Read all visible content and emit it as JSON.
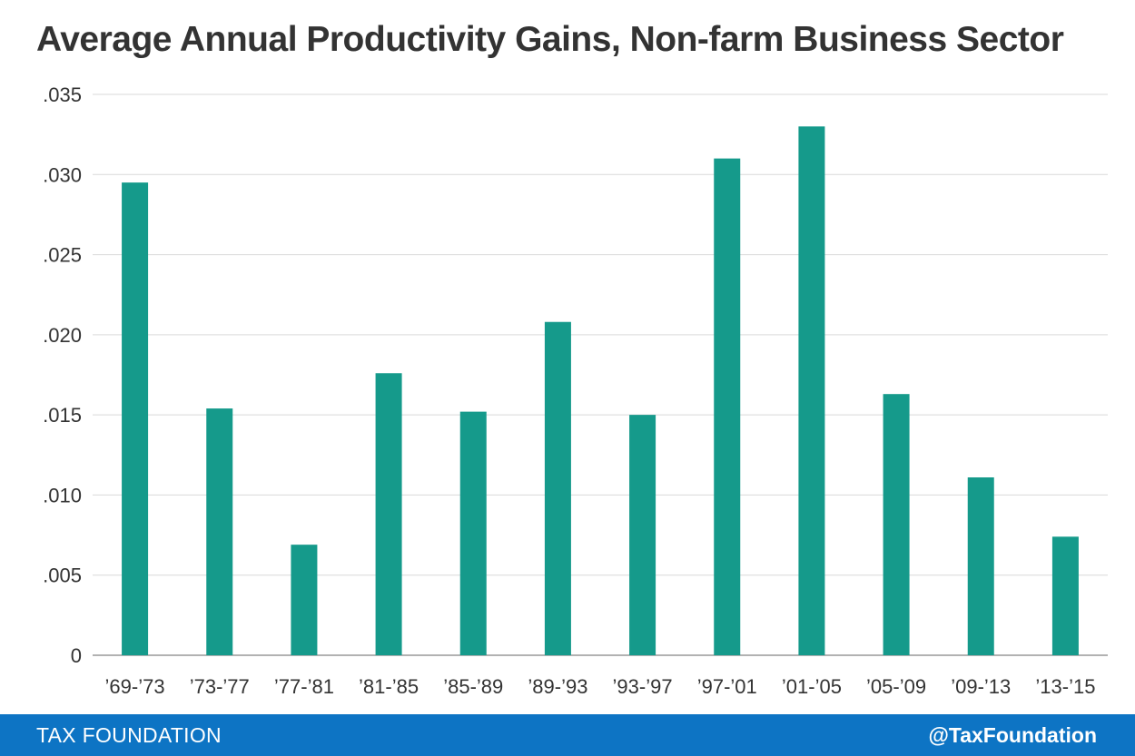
{
  "chart_data": {
    "type": "bar",
    "title": "Average Annual Productivity Gains, Non-farm Business Sector",
    "xlabel": "",
    "ylabel": "",
    "categories": [
      "’69-’73",
      "’73-’77",
      "’77-’81",
      "’81-’85",
      "’85-’89",
      "’89-’93",
      "’93-’97",
      "’97-’01",
      "’01-’05",
      "’05-’09",
      "’09-’13",
      "’13-’15"
    ],
    "values": [
      0.0295,
      0.0154,
      0.0069,
      0.0176,
      0.0152,
      0.0208,
      0.015,
      0.031,
      0.033,
      0.0163,
      0.0111,
      0.0074
    ],
    "ylim": [
      0,
      0.035
    ],
    "yticks": [
      0,
      0.005,
      0.01,
      0.015,
      0.02,
      0.025,
      0.03,
      0.035
    ],
    "ytick_labels": [
      "0",
      ".005",
      ".010",
      ".015",
      ".020",
      ".025",
      ".030",
      ".035"
    ],
    "grid": true,
    "bar_color": "#159a8b"
  },
  "footer": {
    "brand": "TAX FOUNDATION",
    "handle": "@TaxFoundation",
    "background": "#0d74c4"
  }
}
